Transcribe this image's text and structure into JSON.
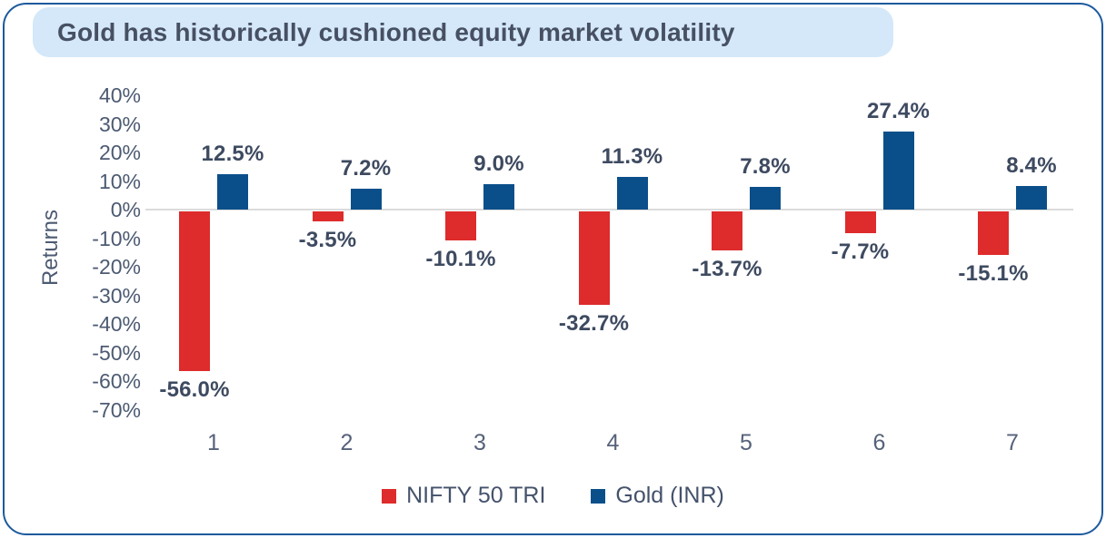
{
  "chart_data": {
    "type": "bar",
    "title": "Gold has historically cushioned equity market volatility",
    "ylabel": "Returns",
    "xlabel": "",
    "categories": [
      "1",
      "2",
      "3",
      "4",
      "5",
      "6",
      "7"
    ],
    "series": [
      {
        "name": "NIFTY 50 TRI",
        "color": "#de2b2b",
        "values": [
          -56.0,
          -3.5,
          -10.1,
          -32.7,
          -13.7,
          -7.7,
          -15.1
        ],
        "labels": [
          "-56.0%",
          "-3.5%",
          "-10.1%",
          "-32.7%",
          "-13.7%",
          "-7.7%",
          "-15.1%"
        ]
      },
      {
        "name": "Gold (INR)",
        "color": "#0b4f8a",
        "values": [
          12.5,
          7.2,
          9.0,
          11.3,
          7.8,
          27.4,
          8.4
        ],
        "labels": [
          "12.5%",
          "7.2%",
          "9.0%",
          "11.3%",
          "7.8%",
          "27.4%",
          "8.4%"
        ]
      }
    ],
    "ylim": [
      -70,
      40
    ],
    "yticks": [
      "40%",
      "30%",
      "20%",
      "10%",
      "0%",
      "-10%",
      "-20%",
      "-30%",
      "-40%",
      "-50%",
      "-60%",
      "-70%"
    ],
    "grid": "zero-line-only",
    "legend_position": "bottom",
    "colors": {
      "card_border": "#1d5a9e",
      "title_pill_bg": "#d4e8f9",
      "title_text": "#475063",
      "axis_text": "#4c5a72",
      "data_label_text": "#3d4a60",
      "zero_line": "#dcdcdc"
    }
  }
}
